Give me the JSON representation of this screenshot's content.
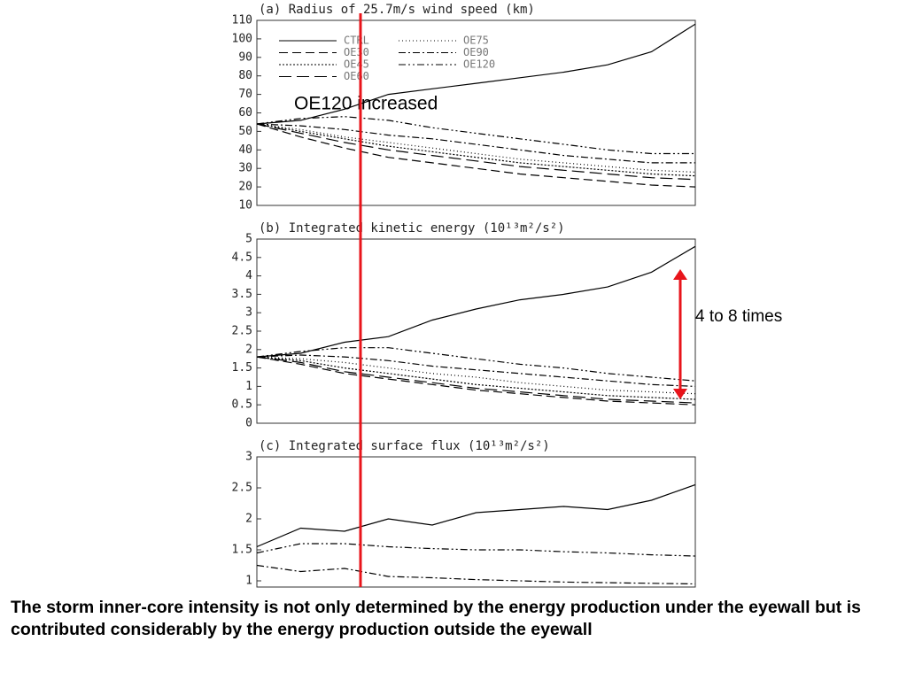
{
  "chart_data": [
    {
      "type": "line",
      "title": "(a) Radius of 25.7m/s wind speed (km)",
      "ylim": [
        10,
        110
      ],
      "yticks": [
        10,
        20,
        30,
        40,
        50,
        60,
        70,
        80,
        90,
        100,
        110
      ],
      "legend": "upper left",
      "series": [
        {
          "name": "CTRL",
          "color": "#000000",
          "dash": "none",
          "values": [
            54,
            56,
            62,
            70,
            73,
            76,
            79,
            82,
            86,
            93,
            108
          ]
        },
        {
          "name": "OE30",
          "color": "#000000",
          "dash": "10,5",
          "values": [
            54,
            47,
            41,
            36,
            33,
            30,
            27,
            25,
            23,
            21,
            20
          ]
        },
        {
          "name": "OE45",
          "color": "#000000",
          "dash": "2,2",
          "values": [
            54,
            50,
            46,
            42,
            39,
            36,
            33,
            31,
            29,
            27,
            26
          ]
        },
        {
          "name": "OE60",
          "color": "#000000",
          "dash": "14,6",
          "values": [
            54,
            49,
            44,
            40,
            37,
            34,
            31,
            29,
            27,
            25,
            24
          ]
        },
        {
          "name": "OE75",
          "color": "#000000",
          "dash": "1,3",
          "values": [
            54,
            51,
            47,
            44,
            41,
            38,
            35,
            33,
            31,
            29,
            28
          ]
        },
        {
          "name": "OE90",
          "color": "#000000",
          "dash": "8,3,2,3",
          "values": [
            54,
            53,
            51,
            48,
            46,
            43,
            40,
            37,
            35,
            33,
            33
          ]
        },
        {
          "name": "OE120",
          "color": "#000000",
          "dash": "8,3,2,3,2,3",
          "values": [
            54,
            57,
            58,
            56,
            52,
            49,
            46,
            43,
            40,
            38,
            38
          ]
        }
      ]
    },
    {
      "type": "line",
      "title": "(b) Integrated kinetic energy (10¹³m²/s²)",
      "ylim": [
        0,
        5
      ],
      "yticks": [
        0,
        0.5,
        1,
        1.5,
        2,
        2.5,
        3,
        3.5,
        4,
        4.5,
        5
      ],
      "series": [
        {
          "name": "CTRL",
          "color": "#000000",
          "dash": "none",
          "values": [
            1.8,
            1.9,
            2.2,
            2.35,
            2.8,
            3.1,
            3.35,
            3.5,
            3.7,
            4.1,
            4.8
          ]
        },
        {
          "name": "OE30",
          "color": "#000000",
          "dash": "10,5",
          "values": [
            1.8,
            1.6,
            1.35,
            1.2,
            1.05,
            0.9,
            0.8,
            0.7,
            0.6,
            0.55,
            0.5
          ]
        },
        {
          "name": "OE45",
          "color": "#000000",
          "dash": "2,2",
          "values": [
            1.8,
            1.7,
            1.5,
            1.35,
            1.2,
            1.05,
            0.95,
            0.85,
            0.75,
            0.7,
            0.65
          ]
        },
        {
          "name": "OE60",
          "color": "#000000",
          "dash": "14,6",
          "values": [
            1.8,
            1.65,
            1.4,
            1.25,
            1.1,
            0.95,
            0.85,
            0.75,
            0.65,
            0.6,
            0.55
          ]
        },
        {
          "name": "OE75",
          "color": "#000000",
          "dash": "1,3",
          "values": [
            1.8,
            1.75,
            1.65,
            1.5,
            1.35,
            1.25,
            1.1,
            1.0,
            0.9,
            0.85,
            0.8
          ]
        },
        {
          "name": "OE90",
          "color": "#000000",
          "dash": "8,3,2,3",
          "values": [
            1.8,
            1.85,
            1.8,
            1.7,
            1.55,
            1.45,
            1.35,
            1.25,
            1.15,
            1.05,
            1.0
          ]
        },
        {
          "name": "OE120",
          "color": "#000000",
          "dash": "8,3,2,3,2,3",
          "values": [
            1.8,
            1.95,
            2.05,
            2.05,
            1.9,
            1.75,
            1.6,
            1.5,
            1.35,
            1.25,
            1.15
          ]
        }
      ]
    },
    {
      "type": "line",
      "title": "(c) Integrated surface flux (10¹³m²/s²)",
      "ylim": [
        0.9,
        3
      ],
      "yticks": [
        1,
        1.5,
        2,
        2.5,
        3
      ],
      "series": [
        {
          "name": "CTRL",
          "color": "#000000",
          "dash": "none",
          "values": [
            1.55,
            1.85,
            1.8,
            2.0,
            1.9,
            2.1,
            2.15,
            2.2,
            2.15,
            2.3,
            2.55
          ]
        },
        {
          "name": "OE90",
          "color": "#000000",
          "dash": "8,3,2,3",
          "values": [
            1.25,
            1.15,
            1.2,
            1.07,
            1.05,
            1.02,
            1.0,
            0.98,
            0.97,
            0.96,
            0.95
          ]
        },
        {
          "name": "OE120",
          "color": "#000000",
          "dash": "8,3,2,3,2,3",
          "values": [
            1.45,
            1.6,
            1.6,
            1.55,
            1.52,
            1.5,
            1.5,
            1.47,
            1.45,
            1.42,
            1.4
          ]
        }
      ]
    }
  ],
  "annotations": [
    "OE120 increased",
    "4 to 8 times"
  ],
  "caption": "The storm inner-core intensity is not only determined by the energy production under the eyewall but is contributed considerably by the energy production outside the eyewall"
}
